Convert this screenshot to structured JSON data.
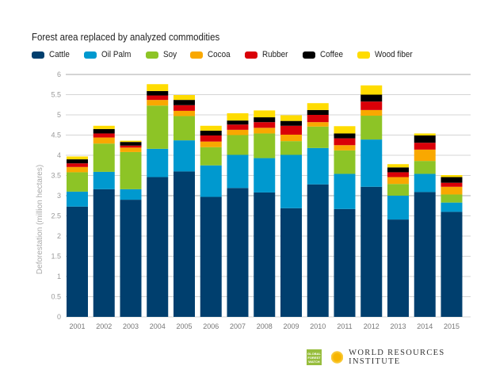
{
  "chart_data": {
    "type": "bar",
    "stacked": true,
    "title": "Forest area replaced by analyzed commodities",
    "xlabel": "",
    "ylabel": "Deforestation (million hectares)",
    "ylim": [
      0,
      6
    ],
    "yticks": [
      "0",
      "0.5",
      "1",
      "1.5",
      "2",
      "2.5",
      "3",
      "3.5",
      "4",
      "4.5",
      "5",
      "5.5",
      "6"
    ],
    "grid": true,
    "legend_position": "top-left",
    "categories": [
      "2001",
      "2002",
      "2003",
      "2004",
      "2005",
      "2006",
      "2007",
      "2008",
      "2009",
      "2010",
      "2011",
      "2012",
      "2013",
      "2014",
      "2015"
    ],
    "series": [
      {
        "name": "Cattle",
        "color": "#003f6e",
        "values": [
          2.73,
          3.16,
          2.9,
          3.46,
          3.6,
          2.97,
          3.19,
          3.08,
          2.69,
          3.28,
          2.67,
          3.22,
          2.41,
          3.09,
          2.6
        ]
      },
      {
        "name": "Oil Palm",
        "color": "#0099cf",
        "values": [
          0.37,
          0.43,
          0.26,
          0.7,
          0.77,
          0.78,
          0.82,
          0.85,
          1.32,
          0.9,
          0.87,
          1.17,
          0.59,
          0.45,
          0.23
        ]
      },
      {
        "name": "Soy",
        "color": "#8dc426",
        "values": [
          0.48,
          0.7,
          0.92,
          1.07,
          0.6,
          0.45,
          0.49,
          0.61,
          0.34,
          0.53,
          0.58,
          0.59,
          0.29,
          0.32,
          0.2
        ]
      },
      {
        "name": "Cocoa",
        "color": "#f9a800",
        "values": [
          0.13,
          0.15,
          0.11,
          0.14,
          0.13,
          0.14,
          0.13,
          0.14,
          0.16,
          0.11,
          0.13,
          0.14,
          0.17,
          0.28,
          0.19
        ]
      },
      {
        "name": "Rubber",
        "color": "#d90008",
        "values": [
          0.09,
          0.1,
          0.05,
          0.11,
          0.14,
          0.15,
          0.13,
          0.14,
          0.22,
          0.18,
          0.17,
          0.21,
          0.12,
          0.17,
          0.1
        ]
      },
      {
        "name": "Coffee",
        "color": "#000000",
        "values": [
          0.1,
          0.11,
          0.09,
          0.11,
          0.13,
          0.12,
          0.1,
          0.12,
          0.12,
          0.12,
          0.12,
          0.17,
          0.12,
          0.18,
          0.14
        ]
      },
      {
        "name": "Wood fiber",
        "color": "#ffdc00",
        "values": [
          0.07,
          0.08,
          0.03,
          0.17,
          0.12,
          0.12,
          0.18,
          0.17,
          0.14,
          0.17,
          0.18,
          0.23,
          0.08,
          0.05,
          0.05
        ]
      }
    ]
  },
  "footer": {
    "gfw_logo": "GLOBAL FOREST WATCH",
    "wri_logo": "WORLD RESOURCES INSTITUTE"
  }
}
